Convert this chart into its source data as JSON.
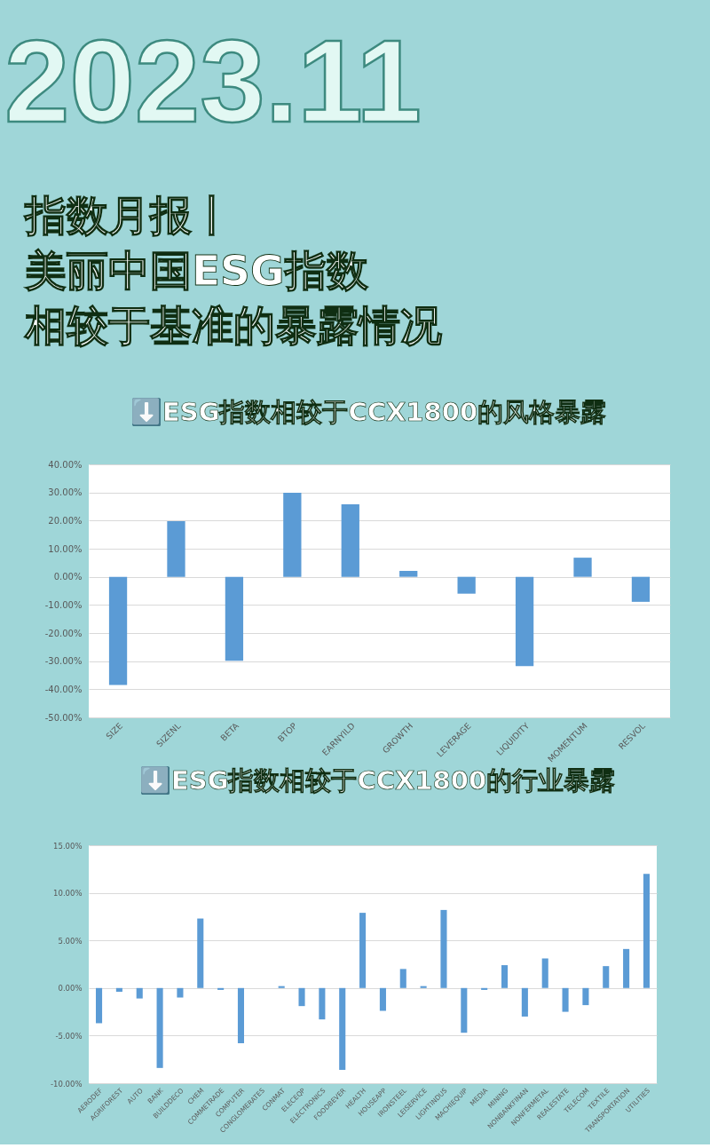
{
  "chart_data": [
    {
      "type": "other",
      "title": "指数月报丨美丽中国ESG指数相较于基准的暴露情况",
      "annotations": [
        "2023.11"
      ]
    },
    {
      "type": "bar",
      "title": "⬇️ESG指数相较于CCX1800的风格暴露",
      "categories": [
        "SIZE",
        "SIZENL",
        "BETA",
        "BTOP",
        "EARNYILD",
        "GROWTH",
        "LEVERAGE",
        "LIQUIDITY",
        "MOMENTUM",
        "RESVOL"
      ],
      "values": [
        -38.5,
        19.8,
        -29.9,
        29.9,
        25.8,
        2.1,
        -6.0,
        -31.8,
        6.8,
        -8.9
      ],
      "color": "#5b9bd5",
      "ylim": [
        -50,
        40
      ],
      "yticks": [
        {
          "value": -50,
          "label": "-50.00%"
        },
        {
          "value": -40,
          "label": "-40.00%"
        },
        {
          "value": -30,
          "label": "-30.00%"
        },
        {
          "value": -20,
          "label": "-20.00%"
        },
        {
          "value": -10,
          "label": "-10.00%"
        },
        {
          "value": 0,
          "label": "0.00%"
        },
        {
          "value": 10,
          "label": "10.00%"
        },
        {
          "value": 20,
          "label": "20.00%"
        },
        {
          "value": 30,
          "label": "30.00%"
        },
        {
          "value": 40,
          "label": "40.00%"
        }
      ],
      "grid": "y"
    },
    {
      "type": "bar",
      "title": "⬇️ESG指数相较于CCX1800的行业暴露",
      "categories": [
        "AERODEF",
        "AGRIFOREST",
        "AUTO",
        "BANK",
        "BUILDDECO",
        "CHEM",
        "COMMETRADE",
        "COMPUTER",
        "CONGLOMERATES",
        "CONMAT",
        "ELECEQP",
        "ELECTRONICS",
        "FOODBEVER",
        "HEALTH",
        "HOUSEAPP",
        "IRONSTEEL",
        "LEISERVICE",
        "LIGHTINDUS",
        "MACHIEQUIP",
        "MEDIA",
        "MINING",
        "NONBANKFINAN",
        "NONFERMETAL",
        "REALESTATE",
        "TELECOM",
        "TEXTILE",
        "TRANSPORTATION",
        "UTILITIES"
      ],
      "values": [
        -3.7,
        -0.4,
        -1.1,
        -8.4,
        -1.0,
        7.3,
        -0.2,
        -5.8,
        0.0,
        0.2,
        -1.9,
        -3.3,
        -8.6,
        7.9,
        -2.4,
        2.0,
        0.2,
        8.2,
        -4.7,
        -0.2,
        2.4,
        -3.0,
        3.1,
        -2.5,
        -1.8,
        2.3,
        4.1,
        12.0
      ],
      "color": "#5b9bd5",
      "ylim": [
        -10,
        15
      ],
      "yticks": [
        {
          "value": -10,
          "label": "-10.00%"
        },
        {
          "value": -5,
          "label": "-5.00%"
        },
        {
          "value": 0,
          "label": "0.00%"
        },
        {
          "value": 5,
          "label": "5.00%"
        },
        {
          "value": 10,
          "label": "10.00%"
        },
        {
          "value": 15,
          "label": "15.00%"
        }
      ],
      "grid": "y"
    }
  ]
}
